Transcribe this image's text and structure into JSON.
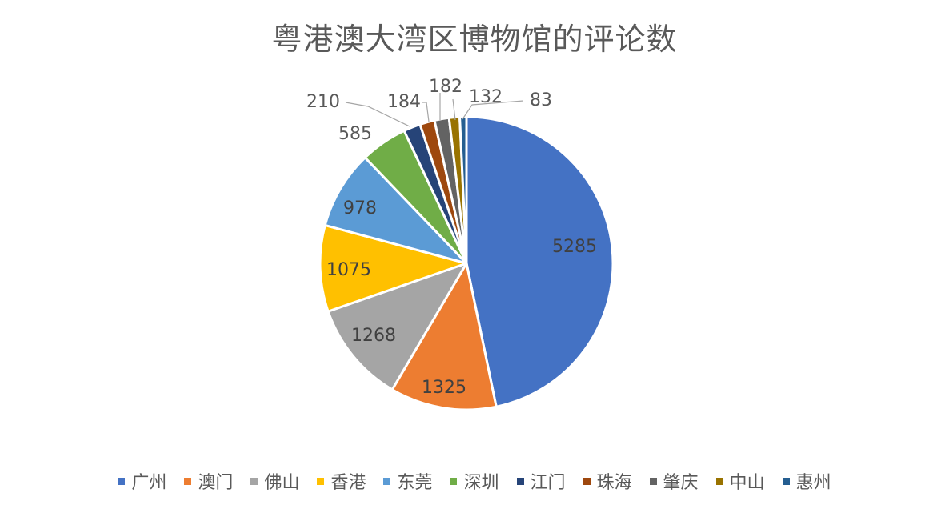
{
  "chart_data": {
    "type": "pie",
    "title": "粤港澳大湾区博物馆的评论数",
    "categories": [
      "广州",
      "澳门",
      "佛山",
      "香港",
      "东莞",
      "深圳",
      "江门",
      "珠海",
      "肇庆",
      "中山",
      "惠州"
    ],
    "values": [
      5285,
      1325,
      1268,
      1075,
      978,
      585,
      210,
      184,
      182,
      132,
      83
    ],
    "colors": [
      "#4472C4",
      "#ED7D31",
      "#A5A5A5",
      "#FFC000",
      "#5B9BD5",
      "#70AD47",
      "#264478",
      "#9E480E",
      "#636363",
      "#997300",
      "#255E91"
    ],
    "legend_position": "bottom",
    "data_labels": true
  }
}
